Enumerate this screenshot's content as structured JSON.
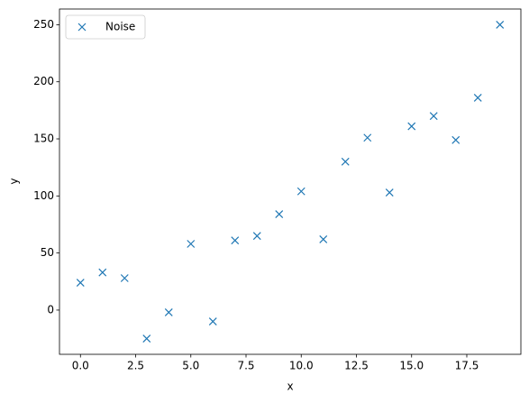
{
  "chart_data": {
    "type": "scatter",
    "xlabel": "x",
    "ylabel": "y",
    "x": [
      0,
      1,
      2,
      3,
      4,
      5,
      6,
      7,
      8,
      9,
      10,
      11,
      12,
      13,
      14,
      15,
      16,
      17,
      18,
      19
    ],
    "series": [
      {
        "name": "Noise",
        "color": "#1f77b4",
        "marker": "x",
        "values": [
          24,
          33,
          28,
          -25,
          -2,
          58,
          -10,
          61,
          65,
          84,
          104,
          62,
          130,
          151,
          103,
          161,
          170,
          149,
          186,
          250
        ]
      }
    ],
    "xlim": [
      -0.95,
      19.95
    ],
    "ylim": [
      -38.75,
      263.75
    ],
    "xticks": [
      {
        "value": 0,
        "label": "0.0"
      },
      2.5,
      {
        "value": 5,
        "label": "5.0"
      },
      7.5,
      {
        "value": 10,
        "label": "10.0"
      },
      12.5,
      {
        "value": 15,
        "label": "15.0"
      },
      17.5
    ],
    "yticks": [
      0,
      50,
      100,
      150,
      200,
      250
    ],
    "legend": "upper left",
    "grid": false
  }
}
